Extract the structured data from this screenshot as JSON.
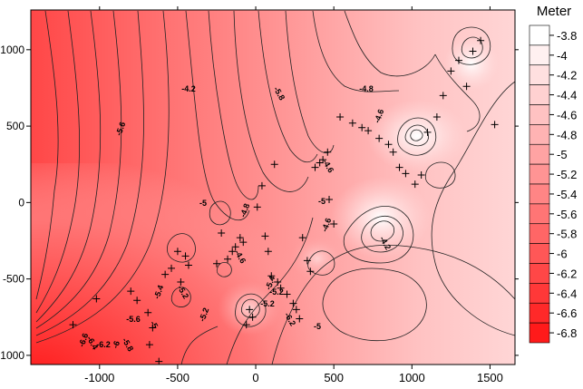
{
  "chart_data": {
    "type": "contour",
    "title": "",
    "xlabel": "",
    "ylabel": "",
    "xlim": [
      -1440,
      1660
    ],
    "ylim": [
      -1060,
      1260
    ],
    "x_ticks": [
      -1000,
      -500,
      0,
      500,
      1000,
      1500
    ],
    "y_ticks": [
      -1000,
      -500,
      0,
      500,
      1000
    ],
    "legend": {
      "title": "Meter",
      "levels": [
        -3.8,
        -4,
        -4.2,
        -4.4,
        -4.6,
        -4.8,
        -5,
        -5.2,
        -5.4,
        -5.6,
        -5.8,
        -6,
        -6.2,
        -6.4,
        -6.6,
        -6.8
      ],
      "colors": [
        "#ffffff",
        "#fff0f0",
        "#ffe0e0",
        "#ffd1d1",
        "#ffc2c2",
        "#ffb3b3",
        "#ffa3a3",
        "#ff9494",
        "#ff8585",
        "#ff7575",
        "#ff6666",
        "#ff5757",
        "#ff4747",
        "#ff3838",
        "#ff2929",
        "#ff1a1a"
      ]
    },
    "contour_labels": [
      "-6.6",
      "-6.4",
      "-6.2",
      "-6",
      "-5.8",
      "-5.6",
      "-5.4",
      "-5.2",
      "-5",
      "-4.8",
      "-4.6",
      "-4.2",
      "-5.6",
      "-5.8",
      "-5.2",
      "-5.4",
      "-6.2",
      "-5",
      "-5.2",
      "-5",
      "-4.8",
      "-4.6",
      "-4.6",
      "-5",
      "-4.6",
      "-4.2",
      "-5.2"
    ],
    "stations": [
      [
        -1170,
        -800
      ],
      [
        -1020,
        -630
      ],
      [
        -800,
        -580
      ],
      [
        -760,
        -640
      ],
      [
        -690,
        -720
      ],
      [
        -660,
        -820
      ],
      [
        -680,
        -930
      ],
      [
        -620,
        -1040
      ],
      [
        -580,
        -470
      ],
      [
        -540,
        -430
      ],
      [
        -500,
        -320
      ],
      [
        -480,
        -520
      ],
      [
        -450,
        -350
      ],
      [
        -430,
        -410
      ],
      [
        -250,
        -400
      ],
      [
        -220,
        -200
      ],
      [
        -180,
        -370
      ],
      [
        -150,
        -320
      ],
      [
        -130,
        -290
      ],
      [
        -100,
        -230
      ],
      [
        -80,
        -260
      ],
      [
        -60,
        -800
      ],
      [
        -40,
        -700
      ],
      [
        -20,
        -750
      ],
      [
        10,
        -30
      ],
      [
        40,
        110
      ],
      [
        60,
        -220
      ],
      [
        80,
        -320
      ],
      [
        100,
        -480
      ],
      [
        120,
        250
      ],
      [
        140,
        -520
      ],
      [
        160,
        -560
      ],
      [
        200,
        -600
      ],
      [
        240,
        -660
      ],
      [
        260,
        -700
      ],
      [
        280,
        -760
      ],
      [
        300,
        -230
      ],
      [
        330,
        -380
      ],
      [
        350,
        -450
      ],
      [
        380,
        230
      ],
      [
        410,
        260
      ],
      [
        430,
        280
      ],
      [
        460,
        330
      ],
      [
        470,
        20
      ],
      [
        500,
        -140
      ],
      [
        540,
        560
      ],
      [
        620,
        520
      ],
      [
        680,
        490
      ],
      [
        720,
        470
      ],
      [
        790,
        420
      ],
      [
        850,
        380
      ],
      [
        880,
        330
      ],
      [
        920,
        230
      ],
      [
        960,
        190
      ],
      [
        1020,
        120
      ],
      [
        1060,
        180
      ],
      [
        1100,
        460
      ],
      [
        1160,
        560
      ],
      [
        1200,
        700
      ],
      [
        1250,
        860
      ],
      [
        1300,
        930
      ],
      [
        1350,
        760
      ],
      [
        1390,
        990
      ],
      [
        1440,
        1060
      ],
      [
        1530,
        510
      ]
    ]
  }
}
